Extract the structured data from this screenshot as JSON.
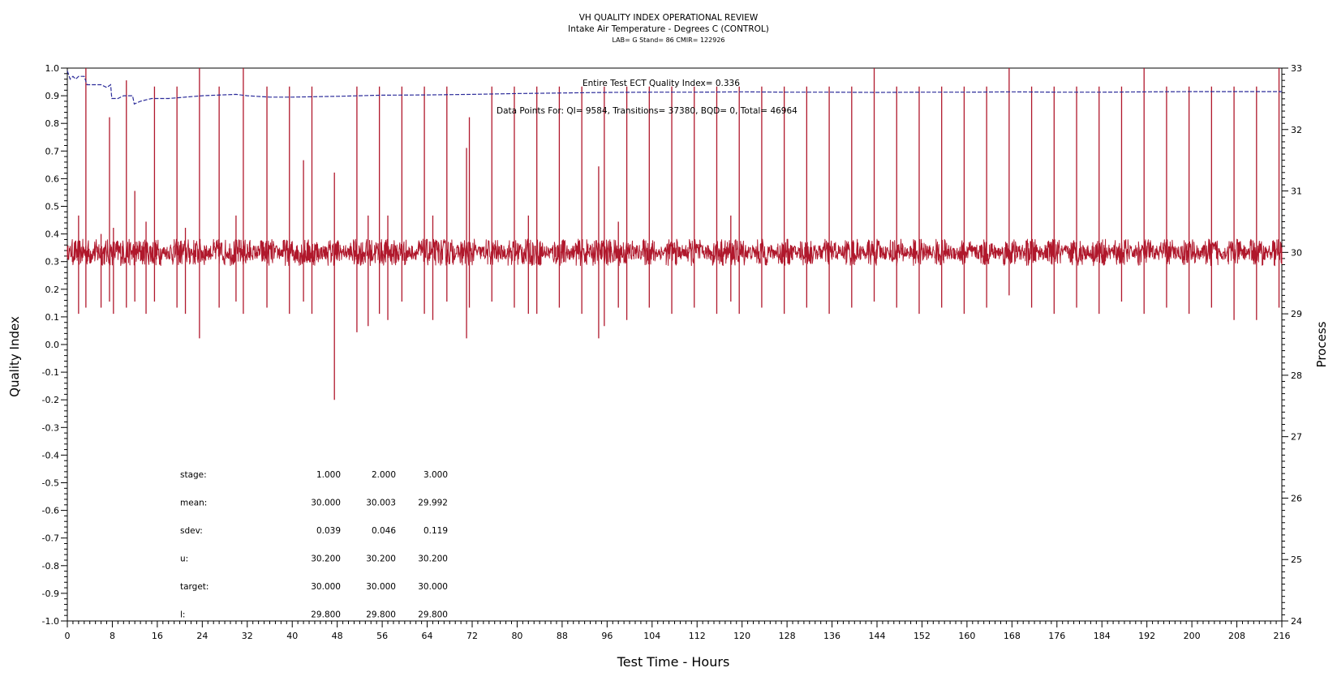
{
  "chart_data": {
    "type": "line",
    "title": "VH QUALITY INDEX OPERATIONAL REVIEW",
    "subtitle": "Intake Air Temperature - Degrees C (CONTROL)",
    "sub_subtitle": "LAB= G Stand= 86 CMIR= 122926",
    "xlabel": "Test Time - Hours",
    "ylabel_left": "Quality Index",
    "ylabel_right": "Process",
    "xlim": [
      0,
      216
    ],
    "ylim_left": [
      -1.0,
      1.0
    ],
    "ylim_right": [
      24,
      33
    ],
    "x_ticks": [
      "0",
      "8",
      "16",
      "24",
      "32",
      "40",
      "48",
      "56",
      "64",
      "72",
      "80",
      "88",
      "96",
      "104",
      "112",
      "120",
      "128",
      "136",
      "144",
      "152",
      "160",
      "168",
      "176",
      "184",
      "192",
      "200",
      "208",
      "216"
    ],
    "y_left_ticks": [
      "1.0",
      "0.9",
      "0.8",
      "0.7",
      "0.6",
      "0.5",
      "0.4",
      "0.3",
      "0.2",
      "0.1",
      "0.0",
      "-0.1",
      "-0.2",
      "-0.3",
      "-0.4",
      "-0.5",
      "-0.6",
      "-0.7",
      "-0.8",
      "-0.9",
      "-1.0"
    ],
    "y_right_ticks": [
      "33",
      "32",
      "31",
      "30",
      "29",
      "28",
      "27",
      "26",
      "25",
      "24"
    ],
    "annotations": {
      "quality_index": "Entire Test ECT Quality Index=   0.336",
      "data_points": "Data Points For: QI=  9584, Transitions= 37380, BQD=     0, Total= 46964"
    },
    "stats_table": {
      "rows": [
        {
          "label": "stage:",
          "values": [
            "1.000",
            "2.000",
            "3.000"
          ]
        },
        {
          "label": "mean:",
          "values": [
            "30.000",
            "30.003",
            "29.992"
          ]
        },
        {
          "label": "sdev:",
          "values": [
            "0.039",
            "0.046",
            "0.119"
          ]
        },
        {
          "label": "u:",
          "values": [
            "30.200",
            "30.200",
            "30.200"
          ]
        },
        {
          "label": "target:",
          "values": [
            "30.000",
            "30.000",
            "30.000"
          ]
        },
        {
          "label": "l:",
          "values": [
            "29.800",
            "29.800",
            "29.800"
          ]
        }
      ]
    },
    "series": [
      {
        "color": "#2b2b9a",
        "axis": "left",
        "points": [
          [
            0,
            0.99
          ],
          [
            0.5,
            0.96
          ],
          [
            1,
            0.97
          ],
          [
            1.5,
            0.96
          ],
          [
            2,
            0.97
          ],
          [
            3,
            0.97
          ],
          [
            3.5,
            0.94
          ],
          [
            5,
            0.94
          ],
          [
            6,
            0.94
          ],
          [
            7,
            0.93
          ],
          [
            7.7,
            0.94
          ],
          [
            7.9,
            0.89
          ],
          [
            9,
            0.89
          ],
          [
            10,
            0.9
          ],
          [
            11,
            0.9
          ],
          [
            11.6,
            0.9
          ],
          [
            11.9,
            0.87
          ],
          [
            13,
            0.88
          ],
          [
            15,
            0.89
          ],
          [
            18,
            0.89
          ],
          [
            24,
            0.9
          ],
          [
            30,
            0.905
          ],
          [
            32,
            0.9
          ],
          [
            36,
            0.895
          ],
          [
            40,
            0.895
          ],
          [
            48,
            0.898
          ],
          [
            56,
            0.902
          ],
          [
            64,
            0.903
          ],
          [
            72,
            0.905
          ],
          [
            80,
            0.908
          ],
          [
            88,
            0.91
          ],
          [
            96,
            0.912
          ],
          [
            104,
            0.913
          ],
          [
            112,
            0.913
          ],
          [
            120,
            0.914
          ],
          [
            128,
            0.913
          ],
          [
            136,
            0.913
          ],
          [
            144,
            0.912
          ],
          [
            152,
            0.913
          ],
          [
            160,
            0.913
          ],
          [
            168,
            0.914
          ],
          [
            176,
            0.913
          ],
          [
            184,
            0.913
          ],
          [
            192,
            0.914
          ],
          [
            200,
            0.915
          ],
          [
            208,
            0.915
          ],
          [
            216,
            0.915
          ]
        ]
      },
      {
        "color": "#b0182c",
        "axis": "right",
        "baseline": 30.0,
        "spikes": [
          {
            "x": 2,
            "hi": 30.6,
            "lo": 29.0
          },
          {
            "x": 3.3,
            "hi": 33.0,
            "lo": 29.1
          },
          {
            "x": 6,
            "hi": 30.3,
            "lo": 29.1
          },
          {
            "x": 7.5,
            "hi": 32.2,
            "lo": 29.2
          },
          {
            "x": 8.2,
            "hi": 30.4,
            "lo": 29.0
          },
          {
            "x": 10.5,
            "hi": 32.8,
            "lo": 29.1
          },
          {
            "x": 12,
            "hi": 31.0,
            "lo": 29.2
          },
          {
            "x": 14,
            "hi": 30.5,
            "lo": 29.0
          },
          {
            "x": 15.5,
            "hi": 32.7,
            "lo": 29.2
          },
          {
            "x": 19.5,
            "hi": 32.7,
            "lo": 29.1
          },
          {
            "x": 21,
            "hi": 30.4,
            "lo": 29.0
          },
          {
            "x": 23.5,
            "hi": 33.0,
            "lo": 28.6
          },
          {
            "x": 27,
            "hi": 32.7,
            "lo": 29.1
          },
          {
            "x": 30,
            "hi": 30.6,
            "lo": 29.2
          },
          {
            "x": 31.3,
            "hi": 33.0,
            "lo": 29.0
          },
          {
            "x": 35.5,
            "hi": 32.7,
            "lo": 29.1
          },
          {
            "x": 39.5,
            "hi": 32.7,
            "lo": 29.0
          },
          {
            "x": 42,
            "hi": 31.5,
            "lo": 29.2
          },
          {
            "x": 43.5,
            "hi": 32.7,
            "lo": 29.0
          },
          {
            "x": 47.5,
            "hi": 31.3,
            "lo": 27.6
          },
          {
            "x": 51.5,
            "hi": 32.7,
            "lo": 28.7
          },
          {
            "x": 53.5,
            "hi": 30.6,
            "lo": 28.8
          },
          {
            "x": 55.5,
            "hi": 32.7,
            "lo": 29.0
          },
          {
            "x": 57,
            "hi": 30.6,
            "lo": 28.9
          },
          {
            "x": 59.5,
            "hi": 32.7,
            "lo": 29.2
          },
          {
            "x": 63.5,
            "hi": 32.7,
            "lo": 29.0
          },
          {
            "x": 65,
            "hi": 30.6,
            "lo": 28.9
          },
          {
            "x": 67.5,
            "hi": 32.7,
            "lo": 29.2
          },
          {
            "x": 71,
            "hi": 31.7,
            "lo": 28.6
          },
          {
            "x": 71.5,
            "hi": 32.2,
            "lo": 29.1
          },
          {
            "x": 75.5,
            "hi": 32.7,
            "lo": 29.2
          },
          {
            "x": 79.5,
            "hi": 32.7,
            "lo": 29.1
          },
          {
            "x": 82,
            "hi": 30.6,
            "lo": 29.0
          },
          {
            "x": 83.5,
            "hi": 32.7,
            "lo": 29.0
          },
          {
            "x": 87.5,
            "hi": 32.7,
            "lo": 29.1
          },
          {
            "x": 91.5,
            "hi": 32.7,
            "lo": 29.0
          },
          {
            "x": 94.5,
            "hi": 31.4,
            "lo": 28.6
          },
          {
            "x": 95.5,
            "hi": 32.7,
            "lo": 28.8
          },
          {
            "x": 98,
            "hi": 30.5,
            "lo": 29.1
          },
          {
            "x": 99.5,
            "hi": 32.7,
            "lo": 28.9
          },
          {
            "x": 103.5,
            "hi": 32.7,
            "lo": 29.1
          },
          {
            "x": 107.5,
            "hi": 32.7,
            "lo": 29.0
          },
          {
            "x": 111.5,
            "hi": 32.7,
            "lo": 29.1
          },
          {
            "x": 115.5,
            "hi": 32.7,
            "lo": 29.0
          },
          {
            "x": 118,
            "hi": 30.6,
            "lo": 29.2
          },
          {
            "x": 119.5,
            "hi": 32.7,
            "lo": 29.0
          },
          {
            "x": 123.5,
            "hi": 32.7,
            "lo": 29.1
          },
          {
            "x": 127.5,
            "hi": 32.7,
            "lo": 29.0
          },
          {
            "x": 131.5,
            "hi": 32.7,
            "lo": 29.1
          },
          {
            "x": 135.5,
            "hi": 32.7,
            "lo": 29.0
          },
          {
            "x": 139.5,
            "hi": 32.7,
            "lo": 29.1
          },
          {
            "x": 143.5,
            "hi": 33.0,
            "lo": 29.2
          },
          {
            "x": 147.5,
            "hi": 32.7,
            "lo": 29.1
          },
          {
            "x": 151.5,
            "hi": 32.7,
            "lo": 29.0
          },
          {
            "x": 155.5,
            "hi": 32.7,
            "lo": 29.1
          },
          {
            "x": 159.5,
            "hi": 32.7,
            "lo": 29.0
          },
          {
            "x": 163.5,
            "hi": 32.7,
            "lo": 29.1
          },
          {
            "x": 167.5,
            "hi": 33.0,
            "lo": 29.3
          },
          {
            "x": 171.5,
            "hi": 32.7,
            "lo": 29.1
          },
          {
            "x": 175.5,
            "hi": 32.7,
            "lo": 29.0
          },
          {
            "x": 179.5,
            "hi": 32.7,
            "lo": 29.1
          },
          {
            "x": 183.5,
            "hi": 32.7,
            "lo": 29.0
          },
          {
            "x": 187.5,
            "hi": 32.7,
            "lo": 29.2
          },
          {
            "x": 191.5,
            "hi": 33.0,
            "lo": 29.0
          },
          {
            "x": 195.5,
            "hi": 32.7,
            "lo": 29.1
          },
          {
            "x": 199.5,
            "hi": 32.7,
            "lo": 29.0
          },
          {
            "x": 203.5,
            "hi": 32.7,
            "lo": 29.1
          },
          {
            "x": 207.5,
            "hi": 32.7,
            "lo": 28.9
          },
          {
            "x": 211.5,
            "hi": 32.7,
            "lo": 28.9
          },
          {
            "x": 215.5,
            "hi": 33.0,
            "lo": 29.1
          }
        ]
      }
    ]
  }
}
